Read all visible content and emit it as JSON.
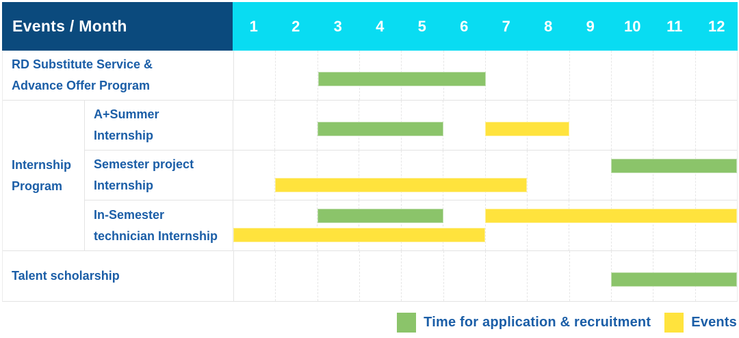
{
  "header": {
    "label": "Events / Month",
    "months": [
      "1",
      "2",
      "3",
      "4",
      "5",
      "6",
      "7",
      "8",
      "9",
      "10",
      "11",
      "12"
    ]
  },
  "colors": {
    "navy": "#0b4a7d",
    "cyan": "#09dcf2",
    "text_blue": "#1b5ea7",
    "green": "#8bc46a",
    "yellow": "#ffe33d",
    "grid": "#e3e3e3"
  },
  "legend": [
    {
      "color": "green",
      "label": "Time for application & recruitment"
    },
    {
      "color": "yellow",
      "label": "Events"
    }
  ],
  "chart_data": {
    "type": "bar",
    "subtype": "gantt-schedule-table",
    "title": "Events / Month",
    "x_axis": {
      "label": "Month",
      "ticks": [
        1,
        2,
        3,
        4,
        5,
        6,
        7,
        8,
        9,
        10,
        11,
        12
      ],
      "range": [
        1,
        12
      ]
    },
    "legend_entries": [
      "Time for application & recruitment",
      "Events"
    ],
    "rows": [
      {
        "group": null,
        "label_lines": [
          "RD Substitute Service &",
          "Advance Offer Program"
        ],
        "bars": [
          {
            "series": "Time for application & recruitment",
            "color": "green",
            "start_month": 3,
            "end_month": 6,
            "line": "single"
          }
        ]
      },
      {
        "group": "Internship Program",
        "label_lines": [
          "A+Summer",
          "Internship"
        ],
        "bars": [
          {
            "series": "Time for application & recruitment",
            "color": "green",
            "start_month": 3,
            "end_month": 5,
            "line": "single"
          },
          {
            "series": "Events",
            "color": "yellow",
            "start_month": 7,
            "end_month": 8,
            "line": "single"
          }
        ]
      },
      {
        "group": "Internship Program",
        "label_lines": [
          "Semester project",
          "Internship"
        ],
        "bars": [
          {
            "series": "Time for application & recruitment",
            "color": "green",
            "start_month": 10,
            "end_month": 12,
            "line": "top"
          },
          {
            "series": "Events",
            "color": "yellow",
            "start_month": 2,
            "end_month": 7,
            "line": "bottom"
          }
        ]
      },
      {
        "group": "Internship Program",
        "label_lines": [
          "In-Semester",
          "technician Internship"
        ],
        "bars": [
          {
            "series": "Time for application & recruitment",
            "color": "green",
            "start_month": 3,
            "end_month": 5,
            "line": "top"
          },
          {
            "series": "Events",
            "color": "yellow",
            "start_month": 7,
            "end_month": 12,
            "line": "top"
          },
          {
            "series": "Events",
            "color": "yellow",
            "start_month": 1,
            "end_month": 6,
            "line": "bottom"
          }
        ]
      },
      {
        "group": null,
        "label_lines": [
          "Talent scholarship"
        ],
        "bars": [
          {
            "series": "Time for application & recruitment",
            "color": "green",
            "start_month": 10,
            "end_month": 12,
            "line": "single"
          }
        ]
      }
    ],
    "group_labels": [
      {
        "label_lines": [
          "Internship",
          "Program"
        ],
        "span_rows": [
          1,
          3
        ]
      }
    ]
  }
}
